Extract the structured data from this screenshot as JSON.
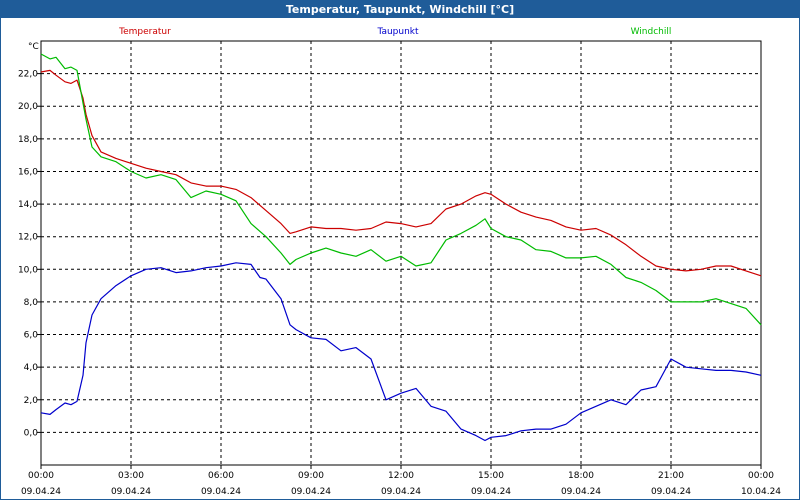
{
  "window": {
    "title": "Temperatur, Taupunkt, Windchill [°C]"
  },
  "chart_data": {
    "type": "line",
    "title": "Temperatur, Taupunkt, Windchill [°C]",
    "ylabel": "°C",
    "xlabel": "",
    "ylim": [
      -2,
      24
    ],
    "xlim": [
      0,
      24
    ],
    "grid": true,
    "legend_placement": "top",
    "y_ticks": [
      {
        "value": 0,
        "label": "0,0"
      },
      {
        "value": 2,
        "label": "2,0"
      },
      {
        "value": 4,
        "label": "4,0"
      },
      {
        "value": 6,
        "label": "6,0"
      },
      {
        "value": 8,
        "label": "8,0"
      },
      {
        "value": 10,
        "label": "10,0"
      },
      {
        "value": 12,
        "label": "12,0"
      },
      {
        "value": 14,
        "label": "14,0"
      },
      {
        "value": 16,
        "label": "16,0"
      },
      {
        "value": 18,
        "label": "18,0"
      },
      {
        "value": 20,
        "label": "20,0"
      },
      {
        "value": 22,
        "label": "22,0"
      }
    ],
    "x_ticks": [
      {
        "value": 0,
        "time": "00:00",
        "date": "09.04.24"
      },
      {
        "value": 3,
        "time": "03:00",
        "date": "09.04.24"
      },
      {
        "value": 6,
        "time": "06:00",
        "date": "09.04.24"
      },
      {
        "value": 9,
        "time": "09:00",
        "date": "09.04.24"
      },
      {
        "value": 12,
        "time": "12:00",
        "date": "09.04.24"
      },
      {
        "value": 15,
        "time": "15:00",
        "date": "09.04.24"
      },
      {
        "value": 18,
        "time": "18:00",
        "date": "09.04.24"
      },
      {
        "value": 21,
        "time": "21:00",
        "date": "09.04.24"
      },
      {
        "value": 24,
        "time": "00:00",
        "date": "10.04.24"
      }
    ],
    "series": [
      {
        "name": "Temperatur",
        "color": "#cc0000",
        "x": [
          0,
          0.3,
          0.5,
          0.8,
          1.0,
          1.2,
          1.4,
          1.5,
          1.7,
          2.0,
          2.5,
          3.0,
          3.5,
          4.0,
          4.5,
          5.0,
          5.5,
          6.0,
          6.5,
          7.0,
          7.5,
          8.0,
          8.3,
          8.5,
          9.0,
          9.5,
          10.0,
          10.5,
          11.0,
          11.5,
          12.0,
          12.5,
          13.0,
          13.5,
          14.0,
          14.5,
          14.8,
          15.0,
          15.5,
          16.0,
          16.5,
          17.0,
          17.5,
          18.0,
          18.5,
          19.0,
          19.5,
          20.0,
          20.5,
          21.0,
          21.5,
          22.0,
          22.5,
          23.0,
          23.5,
          24.0
        ],
        "values": [
          22.1,
          22.2,
          21.9,
          21.5,
          21.4,
          21.6,
          20.5,
          19.5,
          18.2,
          17.2,
          16.8,
          16.5,
          16.2,
          16.0,
          15.8,
          15.3,
          15.1,
          15.1,
          14.9,
          14.4,
          13.6,
          12.8,
          12.2,
          12.3,
          12.6,
          12.5,
          12.5,
          12.4,
          12.5,
          12.9,
          12.8,
          12.6,
          12.8,
          13.7,
          14.0,
          14.5,
          14.7,
          14.6,
          14.0,
          13.5,
          13.2,
          13.0,
          12.6,
          12.4,
          12.5,
          12.1,
          11.5,
          10.8,
          10.2,
          10.0,
          9.9,
          10.0,
          10.2,
          10.2,
          9.9,
          9.6
        ]
      },
      {
        "name": "Taupunkt",
        "color": "#0000cc",
        "x": [
          0,
          0.3,
          0.5,
          0.8,
          1.0,
          1.2,
          1.4,
          1.5,
          1.7,
          2.0,
          2.5,
          3.0,
          3.5,
          4.0,
          4.5,
          5.0,
          5.5,
          6.0,
          6.5,
          7.0,
          7.3,
          7.5,
          8.0,
          8.3,
          8.5,
          9.0,
          9.5,
          10.0,
          10.5,
          11.0,
          11.5,
          12.0,
          12.5,
          13.0,
          13.5,
          14.0,
          14.5,
          14.8,
          15.0,
          15.5,
          16.0,
          16.5,
          17.0,
          17.5,
          18.0,
          18.5,
          19.0,
          19.5,
          20.0,
          20.5,
          21.0,
          21.5,
          22.0,
          22.5,
          23.0,
          23.5,
          24.0
        ],
        "values": [
          1.2,
          1.1,
          1.4,
          1.8,
          1.7,
          1.9,
          3.5,
          5.5,
          7.2,
          8.2,
          9.0,
          9.6,
          10.0,
          10.1,
          9.8,
          9.9,
          10.1,
          10.2,
          10.4,
          10.3,
          9.5,
          9.4,
          8.2,
          6.6,
          6.3,
          5.8,
          5.7,
          5.0,
          5.2,
          4.5,
          2.0,
          2.4,
          2.7,
          1.6,
          1.3,
          0.2,
          -0.2,
          -0.5,
          -0.3,
          -0.2,
          0.1,
          0.2,
          0.2,
          0.5,
          1.2,
          1.6,
          2.0,
          1.7,
          2.6,
          2.8,
          4.5,
          4.0,
          3.9,
          3.8,
          3.8,
          3.7,
          3.5
        ]
      },
      {
        "name": "Windchill",
        "color": "#00bb00",
        "x": [
          0,
          0.3,
          0.5,
          0.8,
          1.0,
          1.2,
          1.4,
          1.5,
          1.7,
          2.0,
          2.5,
          3.0,
          3.5,
          4.0,
          4.5,
          5.0,
          5.5,
          6.0,
          6.5,
          7.0,
          7.5,
          8.0,
          8.3,
          8.5,
          9.0,
          9.5,
          10.0,
          10.5,
          11.0,
          11.5,
          12.0,
          12.5,
          13.0,
          13.5,
          14.0,
          14.5,
          14.8,
          15.0,
          15.5,
          16.0,
          16.5,
          17.0,
          17.5,
          18.0,
          18.5,
          19.0,
          19.5,
          20.0,
          20.5,
          21.0,
          21.5,
          22.0,
          22.5,
          23.0,
          23.5,
          24.0
        ],
        "values": [
          23.2,
          22.9,
          23.0,
          22.3,
          22.4,
          22.2,
          20.2,
          19.2,
          17.5,
          16.9,
          16.6,
          16.0,
          15.6,
          15.8,
          15.5,
          14.4,
          14.8,
          14.6,
          14.2,
          12.8,
          12.0,
          11.0,
          10.3,
          10.6,
          11.0,
          11.3,
          11.0,
          10.8,
          11.2,
          10.5,
          10.8,
          10.2,
          10.4,
          11.8,
          12.2,
          12.7,
          13.1,
          12.5,
          12.0,
          11.8,
          11.2,
          11.1,
          10.7,
          10.7,
          10.8,
          10.3,
          9.5,
          9.2,
          8.7,
          8.0,
          8.0,
          8.0,
          8.2,
          7.9,
          7.6,
          6.6
        ]
      }
    ]
  }
}
